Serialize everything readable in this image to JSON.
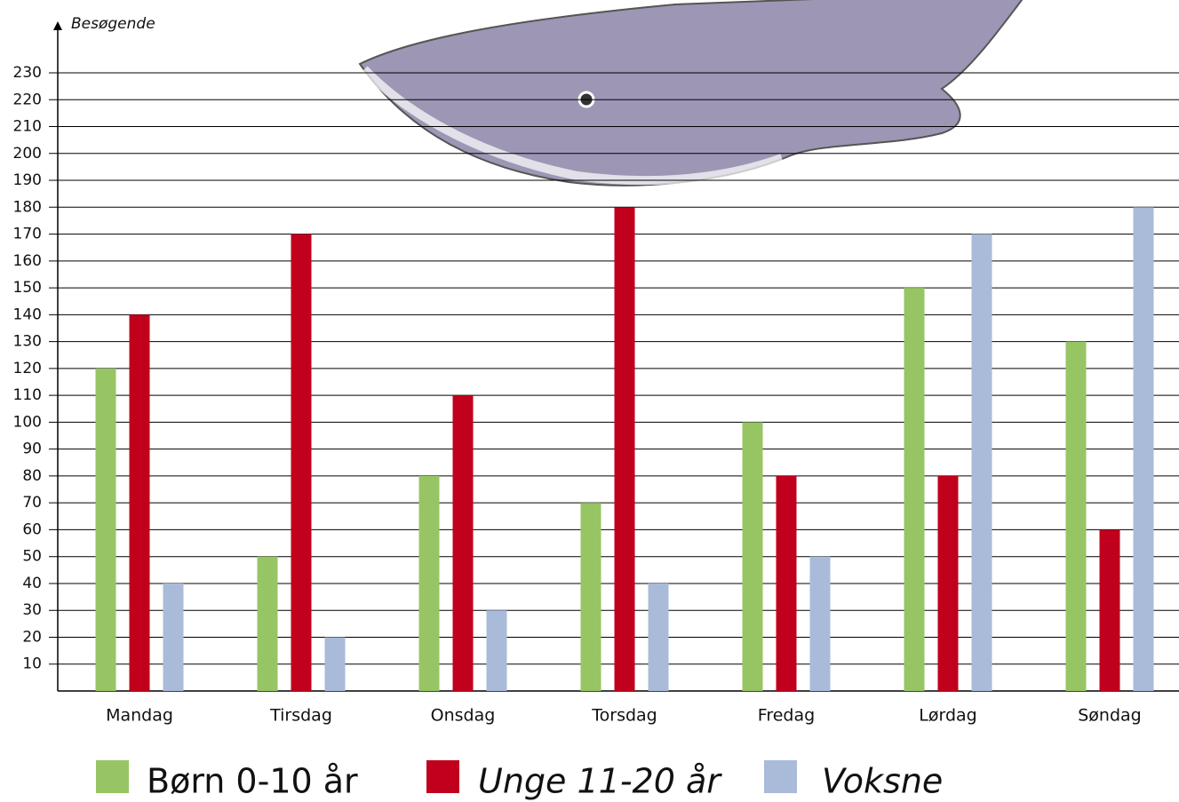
{
  "chart_data": {
    "type": "bar",
    "y_label": "Besøgende",
    "categories": [
      "Mandag",
      "Tirsdag",
      "Onsdag",
      "Torsdag",
      "Fredag",
      "Lørdag",
      "Søndag"
    ],
    "series": [
      {
        "name": "Børn 0-10 år",
        "color": "#97c564",
        "values": [
          120,
          50,
          80,
          70,
          100,
          150,
          130
        ]
      },
      {
        "name": "Unge 11-20 år",
        "color": "#c0001c",
        "values": [
          140,
          170,
          110,
          180,
          80,
          80,
          60
        ]
      },
      {
        "name": "Voksne",
        "color": "#a9bbd9",
        "values": [
          40,
          20,
          30,
          40,
          50,
          170,
          180
        ]
      }
    ],
    "ylim": [
      0,
      230
    ],
    "yticks": [
      10,
      20,
      30,
      40,
      50,
      60,
      70,
      80,
      90,
      100,
      110,
      120,
      130,
      140,
      150,
      160,
      170,
      180,
      190,
      200,
      210,
      220,
      230
    ],
    "grid": true
  }
}
